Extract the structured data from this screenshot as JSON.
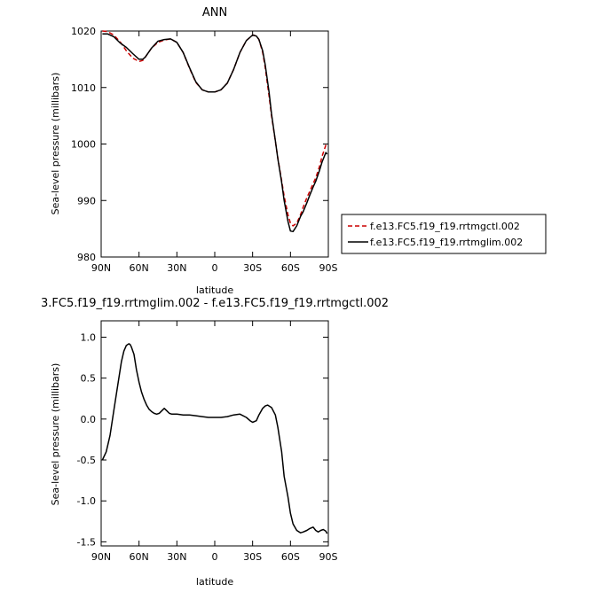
{
  "chart_data": [
    {
      "type": "line",
      "title": "ANN",
      "xlabel": "latitude",
      "ylabel": "Sea-level pressure (millibars)",
      "xticks": [
        "90N",
        "60N",
        "30N",
        "0",
        "30S",
        "60S",
        "90S"
      ],
      "x_values": [
        90,
        60,
        30,
        0,
        -30,
        -60,
        -90
      ],
      "xlim": [
        90,
        -90
      ],
      "ylim": [
        980,
        1020
      ],
      "yticks": [
        980,
        990,
        1000,
        1010,
        1020
      ],
      "legend_position": "right",
      "series": [
        {
          "name": "f.e13.FC5.f19_f19.rrtmgctl.002",
          "color": "#cc0000",
          "dash": "dashed",
          "x": [
            89,
            85,
            80,
            75,
            70,
            65,
            60,
            57,
            55,
            50,
            45,
            40,
            35,
            30,
            25,
            20,
            15,
            10,
            5,
            0,
            -5,
            -10,
            -15,
            -20,
            -25,
            -30,
            -33,
            -35,
            -38,
            -40,
            -43,
            -45,
            -48,
            -50,
            -53,
            -55,
            -58,
            -60,
            -62,
            -65,
            -68,
            -70,
            -73,
            -75,
            -78,
            -80,
            -83,
            -85,
            -88,
            -89
          ],
          "y": [
            1020.0,
            1019.9,
            1019.3,
            1018.1,
            1016.5,
            1015.2,
            1014.6,
            1014.8,
            1015.4,
            1017.0,
            1018.0,
            1018.4,
            1018.6,
            1018.0,
            1016.2,
            1013.4,
            1010.9,
            1009.6,
            1009.2,
            1009.2,
            1009.6,
            1010.8,
            1013.2,
            1016.2,
            1018.3,
            1019.3,
            1019.1,
            1018.5,
            1016.2,
            1013.5,
            1008.5,
            1005.0,
            1000.5,
            997.5,
            993.5,
            990.8,
            987.5,
            986.0,
            985.5,
            986.0,
            987.5,
            988.8,
            990.5,
            991.5,
            993.0,
            994.0,
            996.0,
            997.8,
            999.8,
            1000.0
          ]
        },
        {
          "name": "f.e13.FC5.f19_f19.rrtmglim.002",
          "color": "#000000",
          "dash": "solid",
          "x": [
            89,
            85,
            80,
            75,
            70,
            65,
            60,
            57,
            55,
            50,
            45,
            40,
            35,
            30,
            25,
            20,
            15,
            10,
            5,
            0,
            -5,
            -10,
            -15,
            -20,
            -25,
            -30,
            -33,
            -35,
            -38,
            -40,
            -43,
            -45,
            -48,
            -50,
            -53,
            -55,
            -58,
            -60,
            -62,
            -65,
            -68,
            -70,
            -73,
            -75,
            -78,
            -80,
            -83,
            -85,
            -88,
            -89
          ],
          "y": [
            1019.5,
            1019.5,
            1019.0,
            1017.9,
            1017.1,
            1016.0,
            1015.0,
            1015.0,
            1015.4,
            1017.0,
            1018.2,
            1018.5,
            1018.6,
            1018.0,
            1016.2,
            1013.5,
            1011.0,
            1009.6,
            1009.2,
            1009.2,
            1009.6,
            1010.8,
            1013.2,
            1016.2,
            1018.3,
            1019.3,
            1019.1,
            1018.5,
            1016.5,
            1014.0,
            1009.2,
            1005.3,
            1000.6,
            997.4,
            993.2,
            990.0,
            986.3,
            984.6,
            984.5,
            985.5,
            987.2,
            988.0,
            989.6,
            990.8,
            992.4,
            993.4,
            995.3,
            996.8,
            998.5,
            998.2
          ]
        }
      ]
    },
    {
      "type": "line",
      "title": "3.FC5.f19_f19.rrtmglim.002 - f.e13.FC5.f19_f19.rrtmgctl.002",
      "xlabel": "latitude",
      "ylabel": "Sea-level pressure (millibars)",
      "xticks": [
        "90N",
        "60N",
        "30N",
        "0",
        "30S",
        "60S",
        "90S"
      ],
      "x_values": [
        90,
        60,
        30,
        0,
        -30,
        -60,
        -90
      ],
      "xlim": [
        90,
        -90
      ],
      "ylim": [
        -1.55,
        1.2
      ],
      "yticks": [
        -1.5,
        -1.0,
        -0.5,
        0.0,
        0.5,
        1.0
      ],
      "ytick_labels": [
        "-1.5",
        "-1.0",
        "-0.5",
        "0.0",
        "0.5",
        "1.0"
      ],
      "series": [
        {
          "color": "#000000",
          "dash": "solid",
          "x": [
            89,
            86,
            83,
            80,
            77,
            74,
            72,
            70,
            68,
            67,
            66,
            64,
            62,
            60,
            58,
            56,
            54,
            52,
            50,
            48,
            46,
            44,
            42,
            40,
            38,
            36,
            34,
            32,
            30,
            25,
            20,
            15,
            10,
            5,
            0,
            -5,
            -10,
            -15,
            -20,
            -25,
            -28,
            -30,
            -33,
            -35,
            -38,
            -40,
            -42,
            -45,
            -48,
            -50,
            -53,
            -55,
            -58,
            -60,
            -62,
            -65,
            -68,
            -70,
            -73,
            -75,
            -78,
            -80,
            -82,
            -84,
            -86,
            -88,
            -89
          ],
          "y": [
            -0.5,
            -0.4,
            -0.2,
            0.1,
            0.4,
            0.7,
            0.83,
            0.9,
            0.92,
            0.91,
            0.88,
            0.79,
            0.6,
            0.45,
            0.33,
            0.24,
            0.17,
            0.12,
            0.09,
            0.07,
            0.06,
            0.07,
            0.1,
            0.13,
            0.1,
            0.07,
            0.06,
            0.06,
            0.06,
            0.05,
            0.05,
            0.04,
            0.03,
            0.02,
            0.02,
            0.02,
            0.03,
            0.05,
            0.06,
            0.02,
            -0.02,
            -0.04,
            -0.02,
            0.05,
            0.13,
            0.16,
            0.17,
            0.14,
            0.05,
            -0.1,
            -0.4,
            -0.7,
            -0.95,
            -1.15,
            -1.28,
            -1.36,
            -1.39,
            -1.38,
            -1.36,
            -1.34,
            -1.32,
            -1.36,
            -1.38,
            -1.36,
            -1.35,
            -1.37,
            -1.4
          ]
        }
      ]
    }
  ]
}
